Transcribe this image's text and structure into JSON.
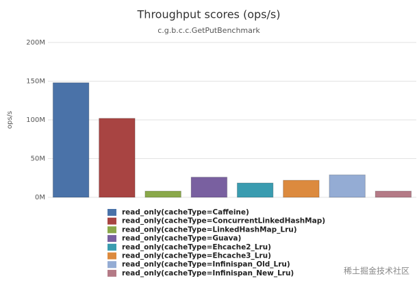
{
  "chart_data": {
    "type": "bar",
    "title": "Throughput scores (ops/s)",
    "subtitle": "c.g.b.c.c.GetPutBenchmark",
    "y_label": "ops/s",
    "categories": [
      "read_only(cacheType=Caffeine)",
      "read_only(cacheType=ConcurrentLinkedHashMap)",
      "read_only(cacheType=LinkedHashMap_Lru)",
      "read_only(cacheType=Guava)",
      "read_only(cacheType=Ehcache2_Lru)",
      "read_only(cacheType=Ehcache3_Lru)",
      "read_only(cacheType=Infinispan_Old_Lru)",
      "read_only(cacheType=Infinispan_New_Lru)"
    ],
    "values": [
      148000000,
      102000000,
      8000000,
      26000000,
      18500000,
      22000000,
      29000000,
      8000000
    ],
    "colors": [
      "#4a72a8",
      "#a84442",
      "#8aa84a",
      "#7960a0",
      "#3a9cb0",
      "#dc8a3e",
      "#94acd4",
      "#b47a86"
    ],
    "ylim": [
      0,
      200000000
    ],
    "yticks": [
      {
        "value": 0,
        "label": "0M"
      },
      {
        "value": 50000000,
        "label": "50M"
      },
      {
        "value": 100000000,
        "label": "100M"
      },
      {
        "value": 150000000,
        "label": "150M"
      },
      {
        "value": 200000000,
        "label": "200M"
      }
    ],
    "grid": true
  },
  "watermark": "稀土掘金技术社区"
}
